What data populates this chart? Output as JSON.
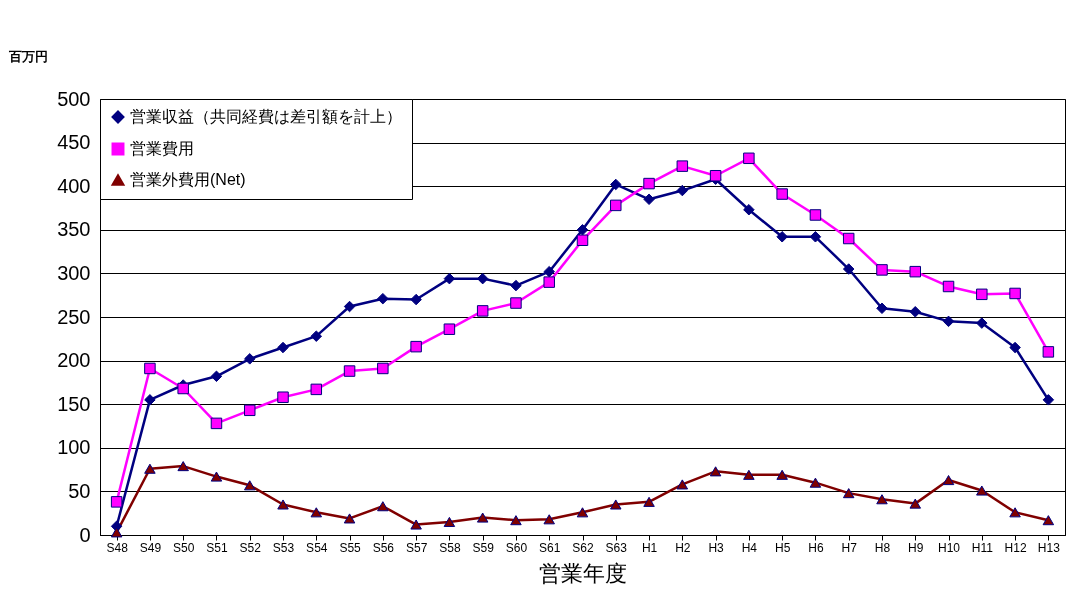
{
  "chart_data": {
    "type": "line",
    "ylabel": "百万円",
    "xlabel": "営業年度",
    "categories": [
      "S48",
      "S49",
      "S50",
      "S51",
      "S52",
      "S53",
      "S54",
      "S55",
      "S56",
      "S57",
      "S58",
      "S59",
      "S60",
      "S61",
      "S62",
      "S63",
      "H1",
      "H2",
      "H3",
      "H4",
      "H5",
      "H6",
      "H7",
      "H8",
      "H9",
      "H10",
      "H11",
      "H12",
      "H13"
    ],
    "ylim": [
      0,
      500
    ],
    "yticks": [
      0,
      50,
      100,
      150,
      200,
      250,
      300,
      350,
      400,
      450,
      500
    ],
    "grid": "y",
    "legend": "top left",
    "series": [
      {
        "name": "営業収益（共同経費は差引額を計上）",
        "color": "#000080",
        "marker": "diamond",
        "values": [
          10,
          155,
          172,
          182,
          202,
          215,
          228,
          262,
          271,
          270,
          294,
          294,
          286,
          302,
          350,
          402,
          385,
          395,
          408,
          373,
          342,
          342,
          305,
          260,
          256,
          245,
          243,
          215,
          155
        ]
      },
      {
        "name": "営業費用",
        "color": "#ff00ff",
        "marker": "square",
        "values": [
          38,
          191,
          168,
          128,
          143,
          158,
          167,
          188,
          191,
          216,
          236,
          257,
          266,
          290,
          338,
          378,
          403,
          423,
          412,
          432,
          391,
          367,
          340,
          304,
          302,
          285,
          276,
          277,
          210
        ]
      },
      {
        "name": "営業外費用(Net)",
        "color": "#800000",
        "marker": "triangle",
        "values": [
          3,
          76,
          79,
          67,
          57,
          35,
          26,
          19,
          33,
          12,
          15,
          20,
          17,
          18,
          26,
          35,
          38,
          58,
          73,
          69,
          69,
          60,
          48,
          41,
          36,
          63,
          51,
          26,
          17
        ]
      }
    ]
  }
}
